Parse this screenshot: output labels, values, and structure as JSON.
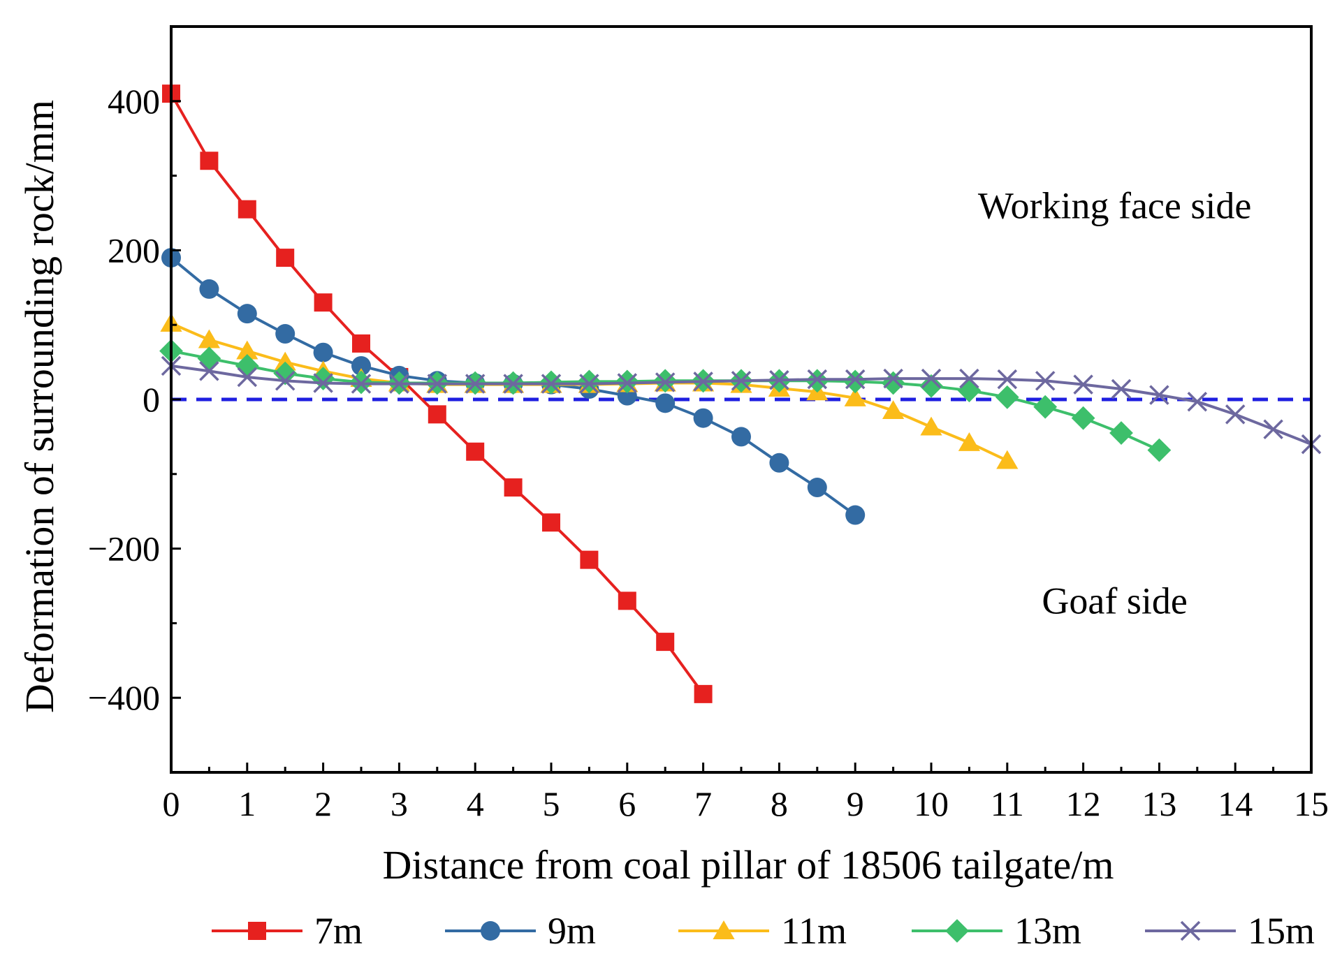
{
  "chart_data": {
    "type": "line",
    "title": "",
    "xlabel": "Distance from coal pillar of 18506 tailgate/m",
    "ylabel": "Deformation of surrounding rock/mm",
    "xlim": [
      0,
      15
    ],
    "ylim": [
      -500,
      500
    ],
    "xticks": [
      0,
      1,
      2,
      3,
      4,
      5,
      6,
      7,
      8,
      9,
      10,
      11,
      12,
      13,
      14,
      15
    ],
    "yticks": [
      -400,
      -200,
      0,
      200,
      400
    ],
    "ytick_labels": [
      "−400",
      "−200",
      "0",
      "200",
      "400"
    ],
    "reference_line": {
      "y": 0,
      "style": "dashed",
      "color": "#1f1fe0"
    },
    "annotations": [
      {
        "text": "Working face side",
        "x": 12.0,
        "y": 260
      },
      {
        "text": "Goaf side",
        "x": 12.0,
        "y": -270
      }
    ],
    "legend_position": "bottom",
    "series": [
      {
        "name": "7m",
        "color": "#e6211f",
        "marker": "square",
        "x": [
          0,
          0.5,
          1,
          1.5,
          2,
          2.5,
          3,
          3.5,
          4,
          4.5,
          5,
          5.5,
          6,
          6.5,
          7
        ],
        "y": [
          410,
          320,
          255,
          190,
          130,
          75,
          30,
          -20,
          -70,
          -118,
          -165,
          -215,
          -270,
          -325,
          -395
        ]
      },
      {
        "name": "9m",
        "color": "#336ba3",
        "marker": "circle",
        "x": [
          0,
          0.5,
          1,
          1.5,
          2,
          2.5,
          3,
          3.5,
          4,
          4.5,
          5,
          5.5,
          6,
          6.5,
          7,
          7.5,
          8,
          8.5,
          9
        ],
        "y": [
          190,
          148,
          115,
          88,
          63,
          45,
          32,
          25,
          22,
          21,
          20,
          14,
          5,
          -5,
          -25,
          -50,
          -85,
          -118,
          -155
        ]
      },
      {
        "name": "11m",
        "color": "#fbbc1a",
        "marker": "triangle",
        "x": [
          0,
          0.5,
          1,
          1.5,
          2,
          2.5,
          3,
          3.5,
          4,
          4.5,
          5,
          5.5,
          6,
          6.5,
          7,
          7.5,
          8,
          8.5,
          9,
          9.5,
          10,
          10.5,
          11
        ],
        "y": [
          102,
          80,
          65,
          50,
          38,
          28,
          22,
          20,
          20,
          20,
          20,
          20,
          21,
          22,
          22,
          20,
          15,
          10,
          2,
          -15,
          -37,
          -58,
          -82
        ]
      },
      {
        "name": "13m",
        "color": "#3dbf6b",
        "marker": "diamond",
        "x": [
          0,
          0.5,
          1,
          1.5,
          2,
          2.5,
          3,
          3.5,
          4,
          4.5,
          5,
          5.5,
          6,
          6.5,
          7,
          7.5,
          8,
          8.5,
          9,
          9.5,
          10,
          10.5,
          11,
          11.5,
          12,
          12.5,
          13
        ],
        "y": [
          65,
          55,
          45,
          35,
          28,
          23,
          22,
          22,
          22,
          22,
          23,
          24,
          24,
          25,
          25,
          25,
          25,
          25,
          24,
          22,
          18,
          12,
          3,
          -10,
          -25,
          -45,
          -68
        ]
      },
      {
        "name": "15m",
        "color": "#6d689f",
        "marker": "x",
        "x": [
          0,
          0.5,
          1,
          1.5,
          2,
          2.5,
          3,
          3.5,
          4,
          4.5,
          5,
          5.5,
          6,
          6.5,
          7,
          7.5,
          8,
          8.5,
          9,
          9.5,
          10,
          10.5,
          11,
          11.5,
          12,
          12.5,
          13,
          13.5,
          14,
          14.5,
          15
        ],
        "y": [
          45,
          38,
          30,
          25,
          22,
          21,
          21,
          21,
          21,
          21,
          21,
          21,
          22,
          23,
          24,
          25,
          26,
          27,
          27,
          28,
          28,
          28,
          27,
          25,
          20,
          14,
          6,
          -3,
          -20,
          -40,
          -60
        ]
      }
    ]
  }
}
